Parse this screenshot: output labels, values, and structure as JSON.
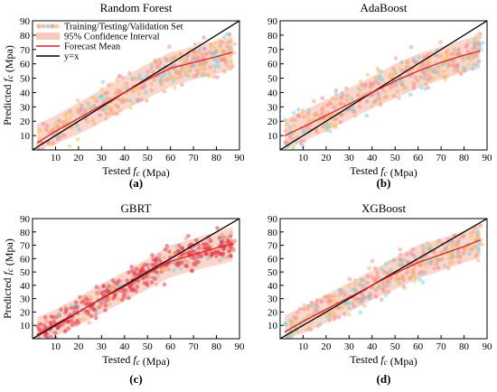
{
  "figure": {
    "panel_labels": [
      "(a)",
      "(b)",
      "(c)",
      "(d)"
    ]
  },
  "legend": {
    "items": [
      "Training/Testing/Validation Set",
      "95% Confidence Interval",
      "Forecast Mean",
      "y=x"
    ]
  },
  "colors": {
    "scatter": [
      "#f59a8c",
      "#f7b276",
      "#7fd3d9",
      "#f08aa0",
      "#f6c46a"
    ],
    "scatter_dense_gbrt": "#e8394a",
    "ci_band": "#f4a58f",
    "forecast_mean": "#d8242b",
    "identity_line": "#000000"
  },
  "chart_data": [
    {
      "type": "scatter",
      "title": "Random Forest",
      "xlabel": "Tested f_c (Mpa)",
      "ylabel": "Predicted f_c (Mpa)",
      "xlim": [
        0,
        90
      ],
      "ylim": [
        0,
        90
      ],
      "xticks": [
        10,
        20,
        30,
        40,
        50,
        60,
        70,
        80,
        90
      ],
      "yticks": [
        10,
        20,
        30,
        40,
        50,
        60,
        70,
        80,
        90
      ],
      "forecast_mean": {
        "x": [
          2,
          10,
          20,
          30,
          40,
          50,
          60,
          70,
          80,
          87
        ],
        "y": [
          5,
          13,
          22,
          31,
          40,
          49,
          57,
          61,
          65,
          68
        ]
      },
      "ci_band": {
        "x": [
          2,
          10,
          20,
          30,
          40,
          50,
          60,
          70,
          80,
          87
        ],
        "lower": [
          0,
          4,
          11,
          19,
          28,
          36,
          44,
          49,
          53,
          56
        ],
        "upper": [
          18,
          24,
          33,
          42,
          51,
          60,
          68,
          72,
          76,
          79
        ]
      },
      "identity": [
        [
          0,
          0
        ],
        [
          90,
          90
        ]
      ]
    },
    {
      "type": "scatter",
      "title": "AdaBoost",
      "xlabel": "Tested f_c (Mpa)",
      "ylabel": "",
      "xlim": [
        0,
        90
      ],
      "ylim": [
        0,
        90
      ],
      "xticks": [
        10,
        20,
        30,
        40,
        50,
        60,
        70,
        80,
        90
      ],
      "yticks": [
        10,
        20,
        30,
        40,
        50,
        60,
        70,
        80,
        90
      ],
      "forecast_mean": {
        "x": [
          2,
          10,
          20,
          30,
          40,
          50,
          60,
          70,
          80,
          87
        ],
        "y": [
          10,
          16,
          24,
          32,
          40,
          48,
          55,
          61,
          66,
          69
        ]
      },
      "ci_band": {
        "x": [
          2,
          10,
          20,
          30,
          40,
          50,
          60,
          70,
          80,
          87
        ],
        "lower": [
          0,
          6,
          13,
          21,
          29,
          36,
          43,
          49,
          54,
          57
        ],
        "upper": [
          21,
          27,
          35,
          43,
          51,
          60,
          67,
          72,
          77,
          80
        ]
      },
      "identity": [
        [
          0,
          0
        ],
        [
          90,
          90
        ]
      ]
    },
    {
      "type": "scatter",
      "title": "GBRT",
      "xlabel": "Tested f_c (Mpa)",
      "ylabel": "Predicted f_c (Mpa)",
      "xlim": [
        0,
        90
      ],
      "ylim": [
        0,
        90
      ],
      "xticks": [
        10,
        20,
        30,
        40,
        50,
        60,
        70,
        80,
        90
      ],
      "yticks": [
        10,
        20,
        30,
        40,
        50,
        60,
        70,
        80,
        90
      ],
      "forecast_mean": {
        "x": [
          2,
          10,
          20,
          30,
          40,
          50,
          60,
          70,
          80,
          87
        ],
        "y": [
          3,
          11,
          20,
          30,
          39,
          49,
          58,
          63,
          68,
          71
        ]
      },
      "ci_band": {
        "x": [
          2,
          10,
          20,
          30,
          40,
          50,
          60,
          70,
          80,
          87
        ],
        "lower": [
          0,
          2,
          10,
          19,
          28,
          37,
          46,
          51,
          55,
          58
        ],
        "upper": [
          16,
          22,
          31,
          41,
          50,
          60,
          70,
          75,
          80,
          84
        ]
      },
      "identity": [
        [
          0,
          0
        ],
        [
          90,
          90
        ]
      ]
    },
    {
      "type": "scatter",
      "title": "XGBoost",
      "xlabel": "Tested f_c (Mpa)",
      "ylabel": "",
      "xlim": [
        0,
        90
      ],
      "ylim": [
        0,
        90
      ],
      "xticks": [
        10,
        20,
        30,
        40,
        50,
        60,
        70,
        80,
        90
      ],
      "yticks": [
        10,
        20,
        30,
        40,
        50,
        60,
        70,
        80,
        90
      ],
      "forecast_mean": {
        "x": [
          2,
          10,
          20,
          30,
          40,
          50,
          60,
          70,
          80,
          87
        ],
        "y": [
          5,
          13,
          22,
          31,
          40,
          49,
          57,
          63,
          69,
          74
        ]
      },
      "ci_band": {
        "x": [
          2,
          10,
          20,
          30,
          40,
          50,
          60,
          70,
          80,
          87
        ],
        "lower": [
          0,
          4,
          12,
          20,
          29,
          37,
          45,
          51,
          57,
          61
        ],
        "upper": [
          17,
          24,
          33,
          42,
          51,
          61,
          70,
          75,
          81,
          86
        ]
      },
      "identity": [
        [
          0,
          0
        ],
        [
          90,
          90
        ]
      ]
    }
  ]
}
